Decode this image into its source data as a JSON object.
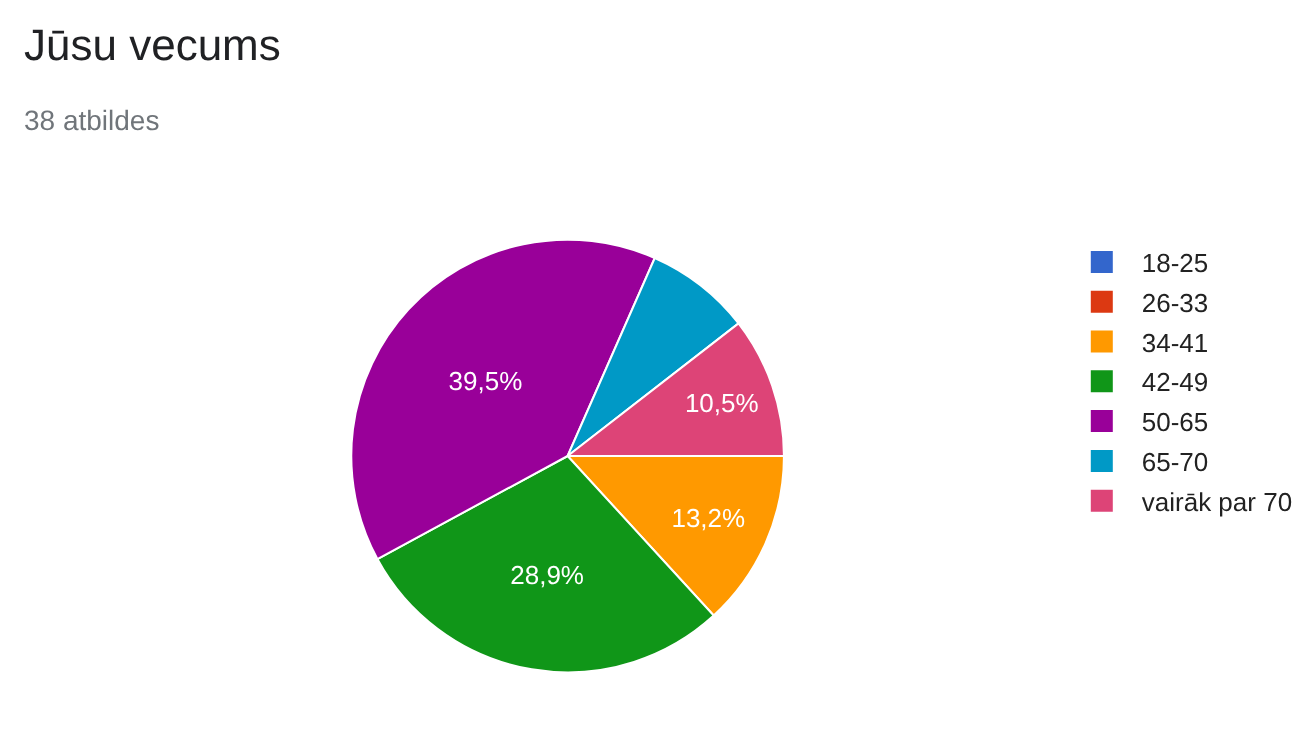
{
  "chart_data": {
    "type": "pie",
    "title": "Jūsu vecums",
    "subtitle": "38 atbildes",
    "categories": [
      "18-25",
      "26-33",
      "34-41",
      "42-49",
      "50-65",
      "65-70",
      "vairāk par 70"
    ],
    "values": [
      0,
      0,
      13.2,
      28.9,
      39.5,
      7.9,
      10.5
    ],
    "value_labels": [
      null,
      null,
      "13,2%",
      "28,9%",
      "39,5%",
      null,
      "10,5%"
    ],
    "colors": [
      "#3366cc",
      "#dc3912",
      "#ff9900",
      "#109618",
      "#990099",
      "#0099c6",
      "#dd4477"
    ],
    "legend": "right"
  }
}
